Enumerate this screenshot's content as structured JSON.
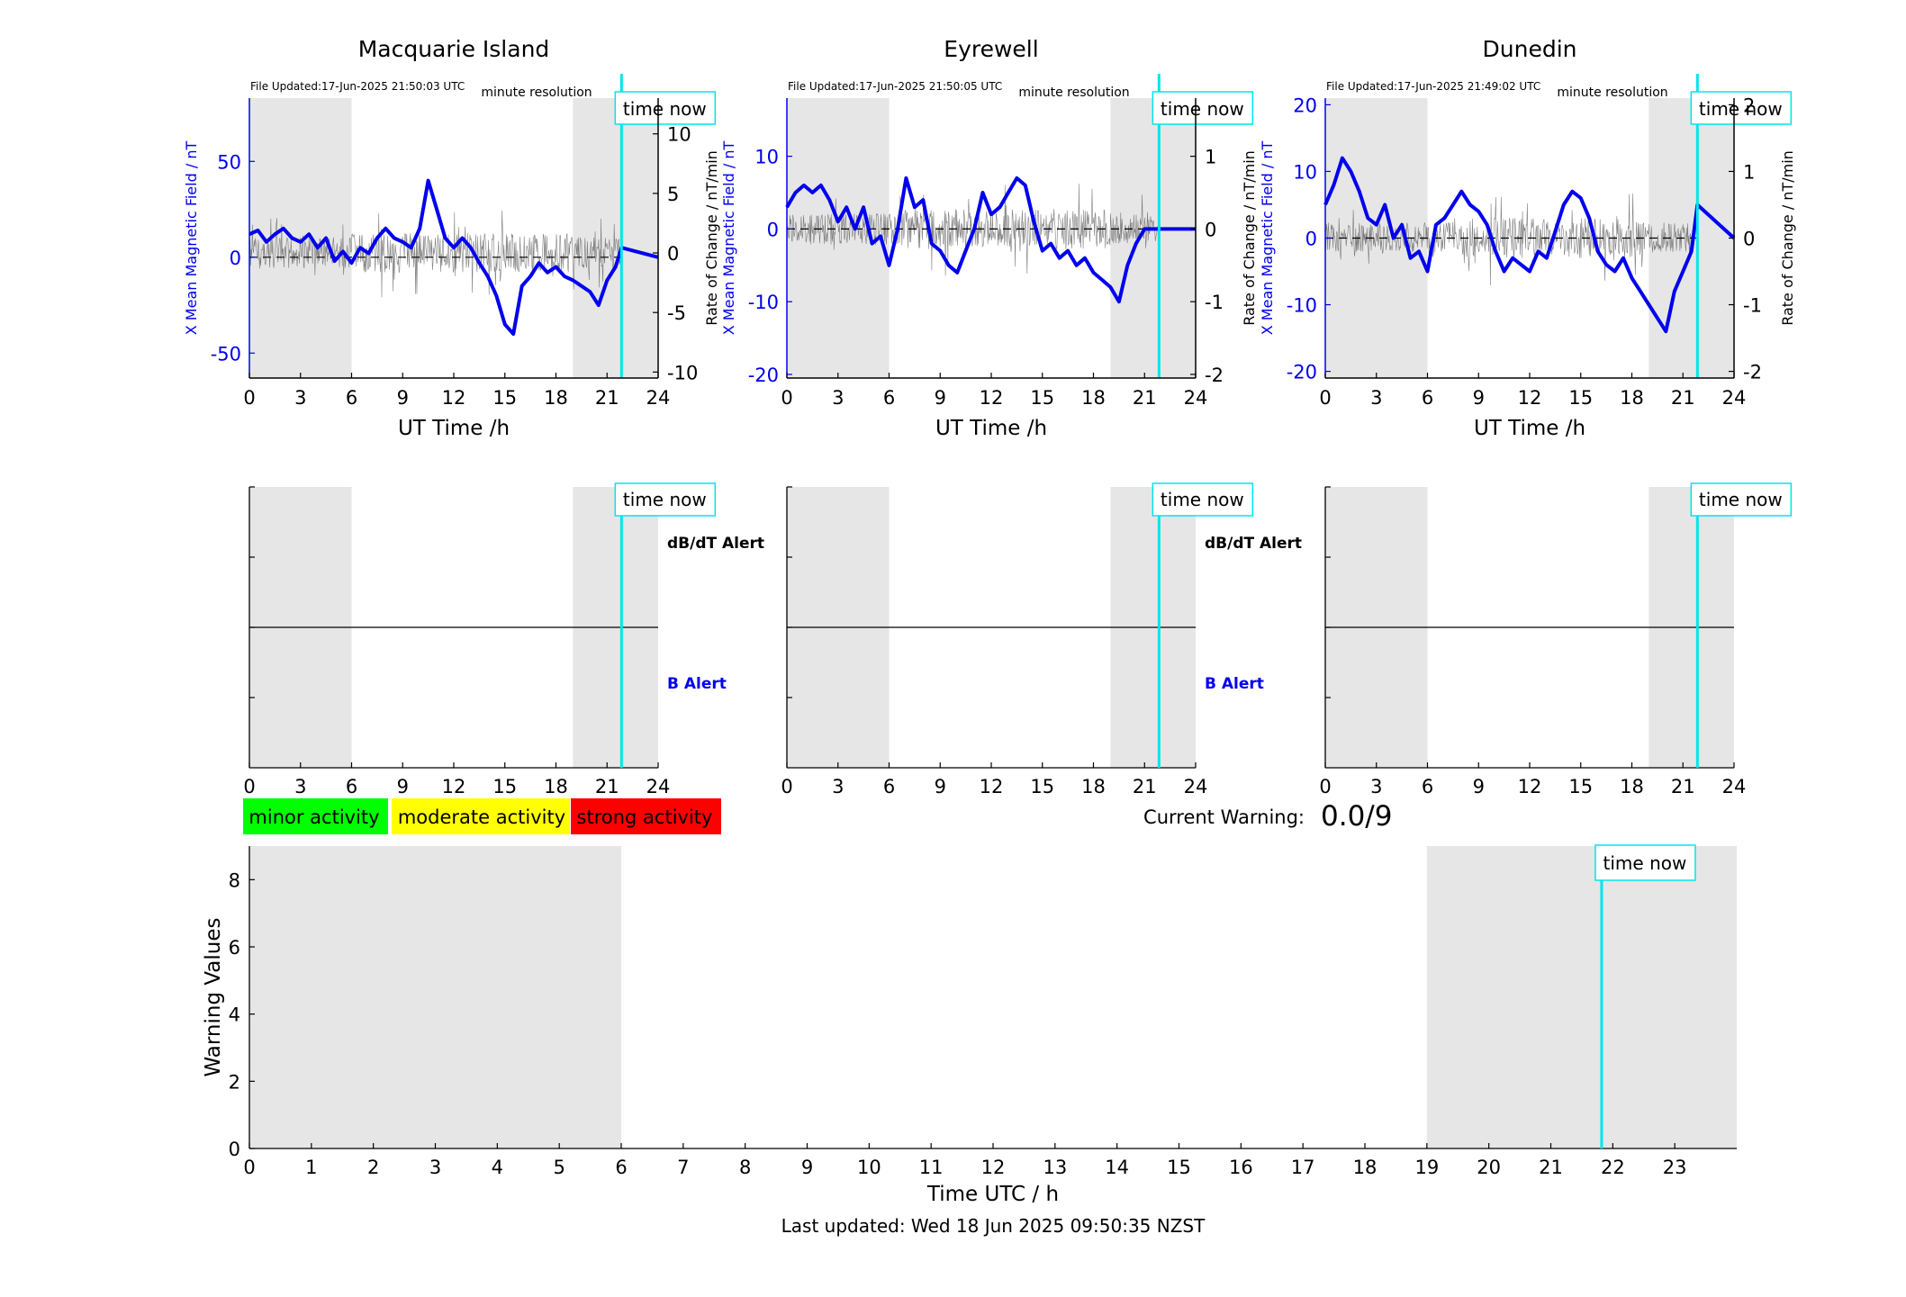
{
  "sections": {
    "stations": [
      {
        "name": "Macquarie Island",
        "file_updated": "File Updated:17-Jun-2025 21:50:03 UTC",
        "resolution": "minute resolution",
        "time_now_label": "time now",
        "left_axis_label": "X Mean Magnetic Field / nT",
        "right_axis_label": "Rate of Change / nT/min",
        "xlabel": "UT Time /h",
        "alert_dbdt_label": "dB/dT Alert",
        "alert_b_label": "B Alert"
      },
      {
        "name": "Eyrewell",
        "file_updated": "File Updated:17-Jun-2025 21:50:05 UTC",
        "resolution": "minute resolution",
        "time_now_label": "time now",
        "left_axis_label": "X Mean Magnetic Field / nT",
        "right_axis_label": "Rate of Change / nT/min",
        "xlabel": "UT Time /h",
        "alert_dbdt_label": "dB/dT Alert",
        "alert_b_label": "B Alert"
      },
      {
        "name": "Dunedin",
        "file_updated": "File Updated:17-Jun-2025 21:49:02 UTC",
        "resolution": "minute resolution",
        "time_now_label": "time now",
        "left_axis_label": "X Mean Magnetic Field / nT",
        "right_axis_label": "Rate of Change / nT/min",
        "xlabel": "UT Time /h",
        "alert_dbdt_label": "",
        "alert_b_label": ""
      }
    ],
    "legend": {
      "minor": "minor activity",
      "moderate": "moderate activity",
      "strong": "strong activity",
      "minor_color": "#00ff00",
      "moderate_color": "#ffff00",
      "strong_color": "#ff0000"
    },
    "current_warning": {
      "label": "Current Warning:",
      "value": "0.0/9"
    },
    "warning_chart": {
      "ylabel": "Warning Values",
      "xlabel": "Time UTC / h",
      "time_now_label": "time now"
    },
    "footer": {
      "last_updated": "Last updated: Wed 18 Jun 2025 09:50:35 NZST"
    }
  },
  "colors": {
    "field_line": "#0000ee",
    "rate_line": "#555555",
    "night_shade": "#e6e6e6",
    "time_now": "#00e5ee",
    "left_axis": "#0000ee"
  },
  "chart_data": [
    {
      "type": "line",
      "title": "Macquarie Island",
      "xlabel": "UT Time /h",
      "ylabel": "X Mean Magnetic Field / nT",
      "y2label": "Rate of Change / nT/min",
      "xlim": [
        0,
        24
      ],
      "xticks": [
        0,
        3,
        6,
        9,
        12,
        15,
        18,
        21,
        24
      ],
      "ylim": [
        -63,
        83
      ],
      "yticks": [
        -50,
        0,
        50
      ],
      "y2lim": [
        -10.5,
        13
      ],
      "y2ticks": [
        -10,
        -5,
        0,
        5,
        10
      ],
      "shaded_x": [
        [
          0,
          6
        ],
        [
          19,
          24
        ]
      ],
      "time_now": 21.85,
      "series": [
        {
          "axis": "left",
          "x": [
            0,
            0.5,
            1,
            1.5,
            2,
            2.5,
            3,
            3.5,
            4,
            4.5,
            5,
            5.5,
            6,
            6.5,
            7,
            7.5,
            8,
            8.5,
            9,
            9.5,
            10,
            10.5,
            11,
            11.5,
            12,
            12.5,
            13,
            13.5,
            14,
            14.5,
            15,
            15.5,
            16,
            16.5,
            17,
            17.5,
            18,
            18.5,
            19,
            19.5,
            20,
            20.5,
            21,
            21.5,
            21.85,
            24
          ],
          "values": [
            12,
            14,
            8,
            12,
            15,
            10,
            8,
            12,
            5,
            10,
            -2,
            3,
            -3,
            5,
            2,
            10,
            15,
            10,
            8,
            5,
            15,
            40,
            25,
            10,
            5,
            10,
            5,
            -3,
            -10,
            -20,
            -35,
            -40,
            -15,
            -10,
            -3,
            -8,
            -5,
            -10,
            -12,
            -15,
            -18,
            -25,
            -12,
            -5,
            5,
            0
          ]
        },
        {
          "axis": "right",
          "x": [
            0,
            21.85
          ],
          "values": [
            0,
            0
          ]
        }
      ]
    },
    {
      "type": "line",
      "title": "Eyrewell",
      "xlabel": "UT Time /h",
      "ylabel": "X Mean Magnetic Field / nT",
      "y2label": "Rate of Change / nT/min",
      "xlim": [
        0,
        24
      ],
      "xticks": [
        0,
        3,
        6,
        9,
        12,
        15,
        18,
        21,
        24
      ],
      "ylim": [
        -20.5,
        18
      ],
      "yticks": [
        -20,
        -10,
        0,
        10
      ],
      "y2lim": [
        -2.05,
        1.8
      ],
      "y2ticks": [
        -2,
        -1,
        0,
        1
      ],
      "shaded_x": [
        [
          0,
          6
        ],
        [
          19,
          24
        ]
      ],
      "time_now": 21.85,
      "series": [
        {
          "axis": "left",
          "x": [
            0,
            0.5,
            1,
            1.5,
            2,
            2.5,
            3,
            3.5,
            4,
            4.5,
            5,
            5.5,
            6,
            6.5,
            7,
            7.5,
            8,
            8.5,
            9,
            9.5,
            10,
            10.5,
            11,
            11.5,
            12,
            12.5,
            13,
            13.5,
            14,
            14.5,
            15,
            15.5,
            16,
            16.5,
            17,
            17.5,
            18,
            18.5,
            19,
            19.5,
            20,
            20.5,
            21,
            21.85,
            24
          ],
          "values": [
            3,
            5,
            6,
            5,
            6,
            4,
            1,
            3,
            0,
            3,
            -2,
            -1,
            -5,
            0,
            7,
            3,
            4,
            -2,
            -3,
            -5,
            -6,
            -3,
            0,
            5,
            2,
            3,
            5,
            7,
            6,
            1,
            -3,
            -2,
            -4,
            -3,
            -5,
            -4,
            -6,
            -7,
            -8,
            -10,
            -5,
            -2,
            0,
            0,
            0
          ]
        },
        {
          "axis": "right",
          "x": [
            0,
            21.85
          ],
          "values": [
            0,
            0
          ]
        }
      ]
    },
    {
      "type": "line",
      "title": "Dunedin",
      "xlabel": "UT Time /h",
      "ylabel": "X Mean Magnetic Field / nT",
      "y2label": "Rate of Change / nT/min",
      "xlim": [
        0,
        24
      ],
      "xticks": [
        0,
        3,
        6,
        9,
        12,
        15,
        18,
        21,
        24
      ],
      "ylim": [
        -21,
        21
      ],
      "yticks": [
        -20,
        -10,
        0,
        10,
        20
      ],
      "y2lim": [
        -2.1,
        2.1
      ],
      "y2ticks": [
        -2,
        -1,
        0,
        1,
        2
      ],
      "shaded_x": [
        [
          0,
          6
        ],
        [
          19,
          24
        ]
      ],
      "time_now": 21.85,
      "series": [
        {
          "axis": "left",
          "x": [
            0,
            0.5,
            1,
            1.5,
            2,
            2.5,
            3,
            3.5,
            4,
            4.5,
            5,
            5.5,
            6,
            6.5,
            7,
            7.5,
            8,
            8.5,
            9,
            9.5,
            10,
            10.5,
            11,
            11.5,
            12,
            12.5,
            13,
            13.5,
            14,
            14.5,
            15,
            15.5,
            16,
            16.5,
            17,
            17.5,
            18,
            18.5,
            19,
            19.5,
            20,
            20.5,
            21,
            21.5,
            21.85,
            24
          ],
          "values": [
            5,
            8,
            12,
            10,
            7,
            3,
            2,
            5,
            0,
            2,
            -3,
            -2,
            -5,
            2,
            3,
            5,
            7,
            5,
            4,
            2,
            -2,
            -5,
            -3,
            -4,
            -5,
            -2,
            -3,
            1,
            5,
            7,
            6,
            3,
            -2,
            -4,
            -5,
            -3,
            -6,
            -8,
            -10,
            -12,
            -14,
            -8,
            -5,
            -2,
            5,
            0
          ]
        },
        {
          "axis": "right",
          "x": [
            0,
            21.85
          ],
          "values": [
            0,
            0
          ]
        }
      ]
    },
    {
      "type": "line",
      "title": "",
      "xlabel": "Time UTC / h",
      "ylabel": "Warning Values",
      "xlim": [
        0,
        24
      ],
      "xticks": [
        0,
        1,
        2,
        3,
        4,
        5,
        6,
        7,
        8,
        9,
        10,
        11,
        12,
        13,
        14,
        15,
        16,
        17,
        18,
        19,
        20,
        21,
        22,
        23
      ],
      "ylim": [
        0,
        9
      ],
      "yticks": [
        0,
        2,
        4,
        6,
        8
      ],
      "shaded_x": [
        [
          0,
          6
        ],
        [
          19,
          24
        ]
      ],
      "time_now": 21.82,
      "series": []
    }
  ]
}
